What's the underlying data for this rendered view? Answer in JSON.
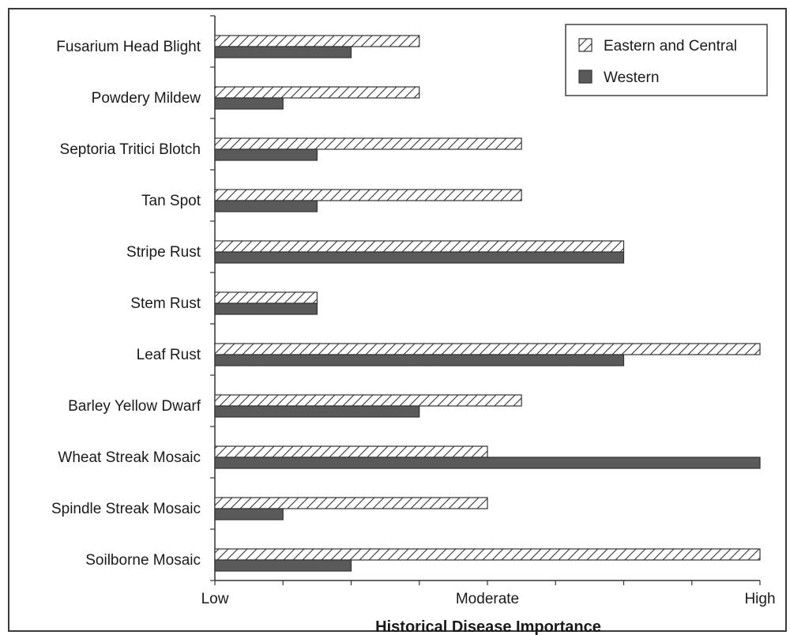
{
  "chart_data": {
    "type": "bar",
    "orientation": "horizontal",
    "title": "",
    "xlabel": "Historical Disease Importance",
    "ylabel": "",
    "xlim": [
      0,
      8
    ],
    "x_tick_labels": [
      {
        "value": 0,
        "label": "Low"
      },
      {
        "value": 4,
        "label": "Moderate"
      },
      {
        "value": 8,
        "label": "High"
      }
    ],
    "categories": [
      "Fusarium Head Blight",
      "Powdery Mildew",
      "Septoria Tritici Blotch",
      "Tan Spot",
      "Stripe Rust",
      "Stem Rust",
      "Leaf Rust",
      "Barley Yellow Dwarf",
      "Wheat Streak Mosaic",
      "Spindle Streak Mosaic",
      "Soilborne Mosaic"
    ],
    "series": [
      {
        "name": "Eastern and Central",
        "pattern": "hatched",
        "color": "#ffffff",
        "values": [
          3,
          3,
          4.5,
          4.5,
          6,
          1.5,
          8,
          4.5,
          4,
          4,
          8
        ]
      },
      {
        "name": "Western",
        "pattern": "solid",
        "color": "#5a5a5a",
        "values": [
          2,
          1,
          1.5,
          1.5,
          6,
          1.5,
          6,
          3,
          8,
          1,
          2
        ]
      }
    ],
    "legend_position": "top-right",
    "grid": false
  }
}
